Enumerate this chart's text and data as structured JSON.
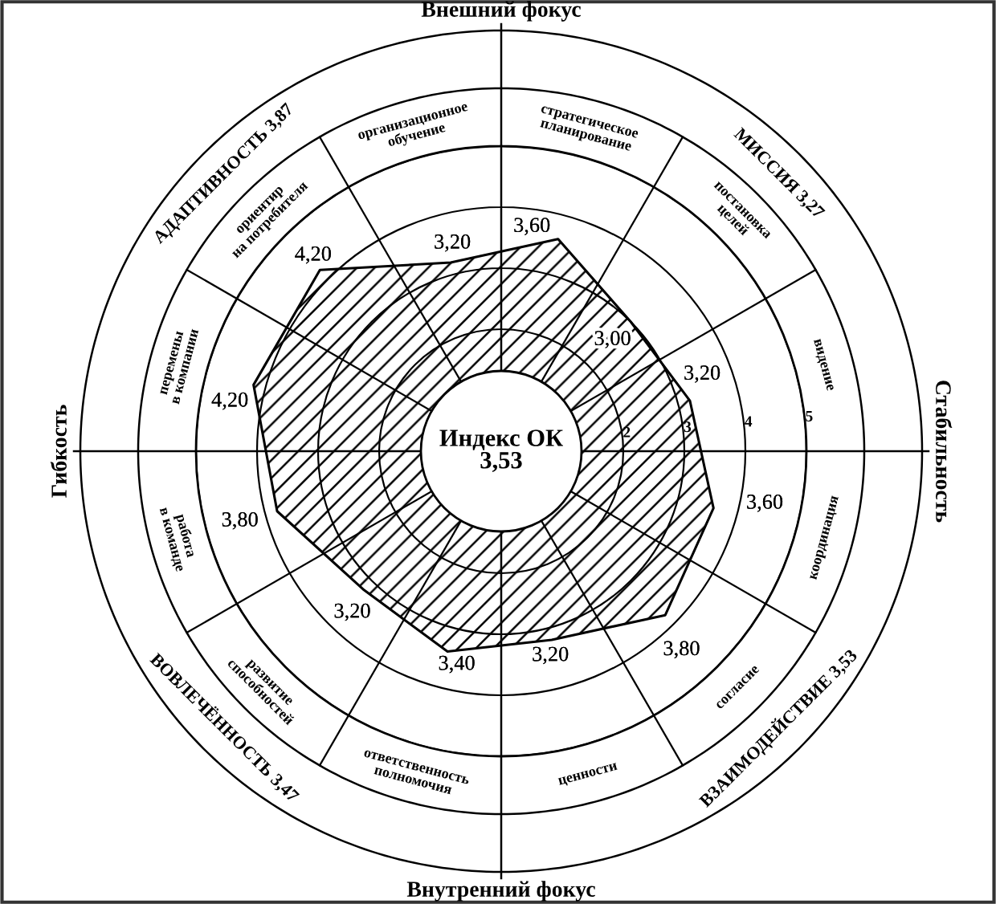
{
  "chart_data": {
    "type": "radar",
    "categories": [
      "стратегическое планирование",
      "постановка целей",
      "видение",
      "координация",
      "согласие",
      "ценности",
      "ответственность полномочия",
      "развитие способностей",
      "работа в команде",
      "перемены в компании",
      "ориентир на потребителя",
      "организационное обучение"
    ],
    "values": [
      3.6,
      3.0,
      3.2,
      3.6,
      3.8,
      3.2,
      3.4,
      3.2,
      3.8,
      4.2,
      4.2,
      3.2
    ],
    "value_labels": [
      "3,60",
      "3,00",
      "3,20",
      "3,60",
      "3,80",
      "3,20",
      "3,40",
      "3,20",
      "3,80",
      "4,20",
      "4,20",
      "3,20"
    ],
    "color": "#000000",
    "ylim": [
      0,
      5
    ],
    "yticks": [
      2,
      3,
      4,
      5
    ],
    "grid": "y",
    "annotations": [
      "Индекс ОК 3,53",
      "Внешний фокус",
      "Стабильность",
      "Внутренний фокус",
      "Гибкость",
      "МИССИЯ 3,27",
      "ВЗАИМОДЕЙСТВИЕ 3,53",
      "ВОВЛЕЧЁННОСТЬ 3,47",
      "АДАПТИВНОСТЬ 3,87"
    ]
  }
}
